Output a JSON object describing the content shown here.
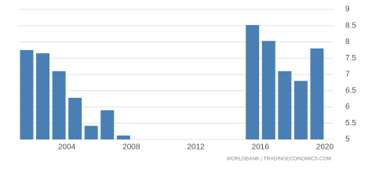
{
  "chart_data": {
    "type": "bar",
    "categories": [
      null,
      null,
      "2004",
      null,
      null,
      null,
      "2008",
      null,
      null,
      null,
      "2012",
      null,
      null,
      null,
      "2016",
      null,
      null,
      null,
      "2020"
    ],
    "values": [
      7.75,
      7.65,
      7.1,
      6.28,
      5.42,
      5.9,
      5.12,
      null,
      null,
      null,
      null,
      null,
      null,
      null,
      8.52,
      8.03,
      7.1,
      6.8,
      7.8
    ],
    "color": "#4a7fb5",
    "ylim": [
      5,
      9
    ],
    "yticks": [
      5,
      5.5,
      6,
      6.5,
      7,
      7.5,
      8,
      8.5,
      9
    ],
    "grid": true,
    "source": "WORLDBANK | TRADINGECONOMICS.COM"
  }
}
